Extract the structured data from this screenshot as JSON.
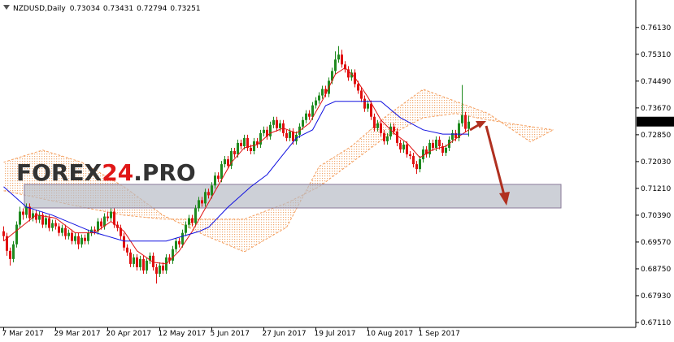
{
  "chart_data": {
    "type": "candlestick",
    "title": "NZDUSD,Daily",
    "watermark": [
      "FOREX",
      "24",
      ".PRO"
    ],
    "up_color": "#1f8a1f",
    "down_color": "#e01010",
    "ylim": [
      0.6696,
      0.7697
    ],
    "yticks": [
      {
        "value": 0.7613,
        "label": "0.76130"
      },
      {
        "value": 0.7531,
        "label": "0.75310"
      },
      {
        "value": 0.7449,
        "label": "0.74490"
      },
      {
        "value": 0.7367,
        "label": "0.73670"
      },
      {
        "value": 0.7285,
        "label": "0.72850"
      },
      {
        "value": 0.7203,
        "label": "0.72030"
      },
      {
        "value": 0.7121,
        "label": "0.71210"
      },
      {
        "value": 0.7039,
        "label": "0.70390"
      },
      {
        "value": 0.6957,
        "label": "0.69570"
      },
      {
        "value": 0.6875,
        "label": "0.68750"
      },
      {
        "value": 0.6793,
        "label": "0.67930"
      },
      {
        "value": 0.6711,
        "label": "0.67110"
      }
    ],
    "categories": [
      "7 Mar 2017",
      null,
      null,
      null,
      null,
      null,
      null,
      null,
      null,
      null,
      null,
      null,
      null,
      null,
      null,
      null,
      "29 Mar 2017",
      null,
      null,
      null,
      null,
      null,
      null,
      null,
      null,
      null,
      null,
      null,
      null,
      null,
      null,
      null,
      "20 Apr 2017",
      null,
      null,
      null,
      null,
      null,
      null,
      null,
      null,
      null,
      null,
      null,
      null,
      null,
      null,
      null,
      "12 May 2017",
      null,
      null,
      null,
      null,
      null,
      null,
      null,
      null,
      null,
      null,
      null,
      null,
      null,
      null,
      null,
      "5 Jun 2017",
      null,
      null,
      null,
      null,
      null,
      null,
      null,
      null,
      null,
      null,
      null,
      null,
      null,
      null,
      null,
      "27 Jun 2017",
      null,
      null,
      null,
      null,
      null,
      null,
      null,
      null,
      null,
      null,
      null,
      null,
      null,
      null,
      null,
      "19 Jul 2017",
      null,
      null,
      null,
      null,
      null,
      null,
      null,
      null,
      null,
      null,
      null,
      null,
      null,
      null,
      null,
      "10 Aug 2017",
      null,
      null,
      null,
      null,
      null,
      null,
      null,
      null,
      null,
      null,
      null,
      null,
      null,
      null,
      null,
      "1 Sep 2017",
      null,
      null,
      null,
      null,
      null,
      null,
      null,
      null,
      null,
      null,
      null,
      null,
      null,
      null,
      null
    ],
    "ohlc": [
      [
        0.699,
        0.7005,
        0.696,
        0.6975
      ],
      [
        0.6975,
        0.6985,
        0.6915,
        0.693
      ],
      [
        0.693,
        0.694,
        0.6885,
        0.6905
      ],
      [
        0.6905,
        0.696,
        0.6895,
        0.695
      ],
      [
        0.695,
        0.702,
        0.694,
        0.701
      ],
      [
        0.701,
        0.7065,
        0.7,
        0.705
      ],
      [
        0.705,
        0.706,
        0.7025,
        0.704
      ],
      [
        0.704,
        0.7075,
        0.703,
        0.7065
      ],
      [
        0.7065,
        0.7075,
        0.702,
        0.703
      ],
      [
        0.703,
        0.7055,
        0.702,
        0.7045
      ],
      [
        0.7045,
        0.7055,
        0.7015,
        0.7025
      ],
      [
        0.7025,
        0.705,
        0.7015,
        0.704
      ],
      [
        0.704,
        0.705,
        0.7,
        0.701
      ],
      [
        0.701,
        0.704,
        0.7,
        0.703
      ],
      [
        0.703,
        0.704,
        0.699,
        0.7
      ],
      [
        0.7,
        0.7025,
        0.699,
        0.7015
      ],
      [
        0.7015,
        0.7025,
        0.6995,
        0.7005
      ],
      [
        0.7005,
        0.7015,
        0.6975,
        0.6985
      ],
      [
        0.6985,
        0.701,
        0.6975,
        0.7
      ],
      [
        0.7,
        0.701,
        0.6965,
        0.6975
      ],
      [
        0.6975,
        0.6995,
        0.6965,
        0.6985
      ],
      [
        0.6985,
        0.6995,
        0.695,
        0.696
      ],
      [
        0.696,
        0.6985,
        0.695,
        0.6975
      ],
      [
        0.6975,
        0.6985,
        0.6935,
        0.695
      ],
      [
        0.695,
        0.698,
        0.694,
        0.697
      ],
      [
        0.697,
        0.698,
        0.695,
        0.696
      ],
      [
        0.696,
        0.6995,
        0.695,
        0.6985
      ],
      [
        0.6985,
        0.7005,
        0.6975,
        0.6995
      ],
      [
        0.6995,
        0.7005,
        0.698,
        0.699
      ],
      [
        0.699,
        0.703,
        0.698,
        0.702
      ],
      [
        0.702,
        0.703,
        0.6995,
        0.7005
      ],
      [
        0.7005,
        0.7045,
        0.6995,
        0.7035
      ],
      [
        0.7035,
        0.705,
        0.702,
        0.703
      ],
      [
        0.703,
        0.706,
        0.702,
        0.705
      ],
      [
        0.705,
        0.706,
        0.7,
        0.701
      ],
      [
        0.701,
        0.702,
        0.699,
        0.7
      ],
      [
        0.7,
        0.701,
        0.6965,
        0.6975
      ],
      [
        0.6975,
        0.6985,
        0.693,
        0.694
      ],
      [
        0.694,
        0.695,
        0.6915,
        0.6925
      ],
      [
        0.6925,
        0.6935,
        0.688,
        0.689
      ],
      [
        0.689,
        0.692,
        0.688,
        0.691
      ],
      [
        0.691,
        0.692,
        0.687,
        0.688
      ],
      [
        0.688,
        0.6915,
        0.687,
        0.6905
      ],
      [
        0.6905,
        0.6915,
        0.686,
        0.687
      ],
      [
        0.687,
        0.691,
        0.686,
        0.69
      ],
      [
        0.69,
        0.6925,
        0.689,
        0.6915
      ],
      [
        0.6915,
        0.6925,
        0.687,
        0.688
      ],
      [
        0.688,
        0.689,
        0.683,
        0.686
      ],
      [
        0.686,
        0.6895,
        0.685,
        0.6885
      ],
      [
        0.6885,
        0.6895,
        0.686,
        0.687
      ],
      [
        0.687,
        0.692,
        0.686,
        0.691
      ],
      [
        0.691,
        0.692,
        0.689,
        0.69
      ],
      [
        0.69,
        0.6945,
        0.689,
        0.6935
      ],
      [
        0.6935,
        0.697,
        0.6925,
        0.696
      ],
      [
        0.696,
        0.697,
        0.694,
        0.695
      ],
      [
        0.695,
        0.6995,
        0.694,
        0.6985
      ],
      [
        0.6985,
        0.702,
        0.6975,
        0.701
      ],
      [
        0.701,
        0.704,
        0.7,
        0.703
      ],
      [
        0.703,
        0.704,
        0.7005,
        0.7015
      ],
      [
        0.7015,
        0.707,
        0.7005,
        0.706
      ],
      [
        0.706,
        0.7095,
        0.705,
        0.7085
      ],
      [
        0.7085,
        0.7095,
        0.7065,
        0.7075
      ],
      [
        0.7075,
        0.712,
        0.7065,
        0.711
      ],
      [
        0.711,
        0.712,
        0.709,
        0.71
      ],
      [
        0.71,
        0.714,
        0.709,
        0.713
      ],
      [
        0.713,
        0.717,
        0.712,
        0.716
      ],
      [
        0.716,
        0.717,
        0.714,
        0.715
      ],
      [
        0.715,
        0.7205,
        0.714,
        0.7195
      ],
      [
        0.7195,
        0.722,
        0.7185,
        0.721
      ],
      [
        0.721,
        0.722,
        0.718,
        0.719
      ],
      [
        0.719,
        0.7245,
        0.718,
        0.7235
      ],
      [
        0.7235,
        0.7245,
        0.7215,
        0.7225
      ],
      [
        0.7225,
        0.727,
        0.7215,
        0.726
      ],
      [
        0.726,
        0.727,
        0.724,
        0.725
      ],
      [
        0.725,
        0.7285,
        0.724,
        0.7275
      ],
      [
        0.7275,
        0.7285,
        0.7235,
        0.7245
      ],
      [
        0.7245,
        0.7255,
        0.7225,
        0.7235
      ],
      [
        0.7235,
        0.7275,
        0.7225,
        0.7265
      ],
      [
        0.7265,
        0.7275,
        0.7245,
        0.7255
      ],
      [
        0.7255,
        0.73,
        0.7245,
        0.729
      ],
      [
        0.729,
        0.731,
        0.728,
        0.73
      ],
      [
        0.73,
        0.731,
        0.727,
        0.728
      ],
      [
        0.728,
        0.7325,
        0.727,
        0.7315
      ],
      [
        0.7315,
        0.734,
        0.7305,
        0.733
      ],
      [
        0.733,
        0.734,
        0.7295,
        0.7305
      ],
      [
        0.7305,
        0.733,
        0.7295,
        0.732
      ],
      [
        0.732,
        0.733,
        0.728,
        0.729
      ],
      [
        0.729,
        0.73,
        0.7265,
        0.7275
      ],
      [
        0.7275,
        0.7305,
        0.7265,
        0.7295
      ],
      [
        0.7295,
        0.7305,
        0.7255,
        0.7265
      ],
      [
        0.7265,
        0.7295,
        0.7255,
        0.7285
      ],
      [
        0.7285,
        0.732,
        0.7275,
        0.731
      ],
      [
        0.731,
        0.734,
        0.73,
        0.733
      ],
      [
        0.733,
        0.736,
        0.732,
        0.735
      ],
      [
        0.735,
        0.736,
        0.733,
        0.734
      ],
      [
        0.734,
        0.7385,
        0.733,
        0.7375
      ],
      [
        0.7375,
        0.74,
        0.7365,
        0.739
      ],
      [
        0.739,
        0.7415,
        0.738,
        0.7405
      ],
      [
        0.7405,
        0.7435,
        0.7395,
        0.7425
      ],
      [
        0.7425,
        0.7435,
        0.74,
        0.741
      ],
      [
        0.741,
        0.746,
        0.74,
        0.745
      ],
      [
        0.745,
        0.749,
        0.744,
        0.748
      ],
      [
        0.748,
        0.754,
        0.747,
        0.7515
      ],
      [
        0.7515,
        0.7556,
        0.7505,
        0.753
      ],
      [
        0.753,
        0.7545,
        0.749,
        0.75
      ],
      [
        0.75,
        0.751,
        0.7475,
        0.7485
      ],
      [
        0.7485,
        0.7495,
        0.745,
        0.746
      ],
      [
        0.746,
        0.7485,
        0.745,
        0.7475
      ],
      [
        0.7475,
        0.7485,
        0.743,
        0.744
      ],
      [
        0.744,
        0.745,
        0.741,
        0.742
      ],
      [
        0.742,
        0.743,
        0.7385,
        0.7395
      ],
      [
        0.7395,
        0.7405,
        0.7355,
        0.7365
      ],
      [
        0.7365,
        0.739,
        0.7355,
        0.738
      ],
      [
        0.738,
        0.739,
        0.733,
        0.734
      ],
      [
        0.734,
        0.735,
        0.7295,
        0.7305
      ],
      [
        0.7305,
        0.733,
        0.7295,
        0.732
      ],
      [
        0.732,
        0.733,
        0.728,
        0.729
      ],
      [
        0.729,
        0.73,
        0.7255,
        0.7265
      ],
      [
        0.7265,
        0.729,
        0.7255,
        0.728
      ],
      [
        0.728,
        0.732,
        0.727,
        0.731
      ],
      [
        0.731,
        0.732,
        0.7285,
        0.7295
      ],
      [
        0.7295,
        0.7305,
        0.725,
        0.726
      ],
      [
        0.726,
        0.727,
        0.723,
        0.724
      ],
      [
        0.724,
        0.7265,
        0.723,
        0.7255
      ],
      [
        0.7255,
        0.7265,
        0.7215,
        0.7225
      ],
      [
        0.7225,
        0.7235,
        0.721,
        0.722
      ],
      [
        0.722,
        0.723,
        0.7185,
        0.7195
      ],
      [
        0.7195,
        0.7205,
        0.7165,
        0.718
      ],
      [
        0.718,
        0.722,
        0.717,
        0.721
      ],
      [
        0.721,
        0.725,
        0.72,
        0.724
      ],
      [
        0.724,
        0.725,
        0.7215,
        0.7225
      ],
      [
        0.7225,
        0.727,
        0.7215,
        0.726
      ],
      [
        0.726,
        0.727,
        0.7235,
        0.7245
      ],
      [
        0.7245,
        0.728,
        0.7235,
        0.727
      ],
      [
        0.727,
        0.728,
        0.724,
        0.725
      ],
      [
        0.725,
        0.726,
        0.722,
        0.723
      ],
      [
        0.723,
        0.7255,
        0.722,
        0.7245
      ],
      [
        0.7245,
        0.728,
        0.7235,
        0.727
      ],
      [
        0.727,
        0.73,
        0.726,
        0.729
      ],
      [
        0.729,
        0.73,
        0.7265,
        0.7275
      ],
      [
        0.7275,
        0.733,
        0.7265,
        0.732
      ],
      [
        0.732,
        0.7437,
        0.731,
        0.7345
      ],
      [
        0.7345,
        0.7355,
        0.7293,
        0.7303
      ],
      [
        0.73034,
        0.73431,
        0.72794,
        0.73251
      ]
    ],
    "series": [
      {
        "color": "#e01010",
        "x": [
          0,
          5,
          10,
          16,
          22,
          28,
          33,
          37,
          41,
          46,
          50,
          54,
          58,
          62,
          66,
          70,
          74,
          78,
          82,
          86,
          90,
          94,
          98,
          102,
          105,
          108,
          112,
          116,
          120,
          124,
          128,
          132,
          136,
          140,
          143
        ],
        "values": [
          0.696,
          0.7,
          0.704,
          0.703,
          0.6985,
          0.6985,
          0.702,
          0.699,
          0.693,
          0.6895,
          0.689,
          0.693,
          0.699,
          0.706,
          0.713,
          0.72,
          0.7245,
          0.7255,
          0.729,
          0.7305,
          0.729,
          0.732,
          0.739,
          0.747,
          0.749,
          0.746,
          0.74,
          0.733,
          0.729,
          0.726,
          0.7215,
          0.724,
          0.725,
          0.728,
          0.73
        ]
      },
      {
        "color": "#1010e0",
        "x": [
          0,
          7,
          15,
          27,
          37,
          50,
          60,
          63,
          69,
          76,
          81,
          85,
          90,
          95,
          99,
          102,
          116,
          122,
          129,
          135,
          143
        ],
        "values": [
          0.7126,
          0.7064,
          0.7039,
          0.6989,
          0.696,
          0.696,
          0.6989,
          0.7002,
          0.7064,
          0.7126,
          0.7163,
          0.7213,
          0.7275,
          0.73,
          0.7374,
          0.7387,
          0.7387,
          0.7337,
          0.73,
          0.7287,
          0.7287
        ]
      }
    ],
    "cloud": {
      "color": "#f5a060",
      "x": [
        0,
        12,
        24,
        37,
        49,
        62,
        74,
        87,
        97,
        107,
        117,
        129,
        139,
        149,
        162,
        169
      ],
      "span_a": [
        0.7201,
        0.7238,
        0.7201,
        0.7126,
        0.7039,
        0.6977,
        0.6927,
        0.7002,
        0.7188,
        0.725,
        0.7337,
        0.7424,
        0.7387,
        0.735,
        0.7263,
        0.73
      ],
      "span_b": [
        0.7114,
        0.7089,
        0.7064,
        0.7039,
        0.7027,
        0.7027,
        0.7027,
        0.7076,
        0.7126,
        0.72,
        0.7275,
        0.7337,
        0.735,
        0.733,
        0.731,
        0.73
      ]
    }
  }
}
